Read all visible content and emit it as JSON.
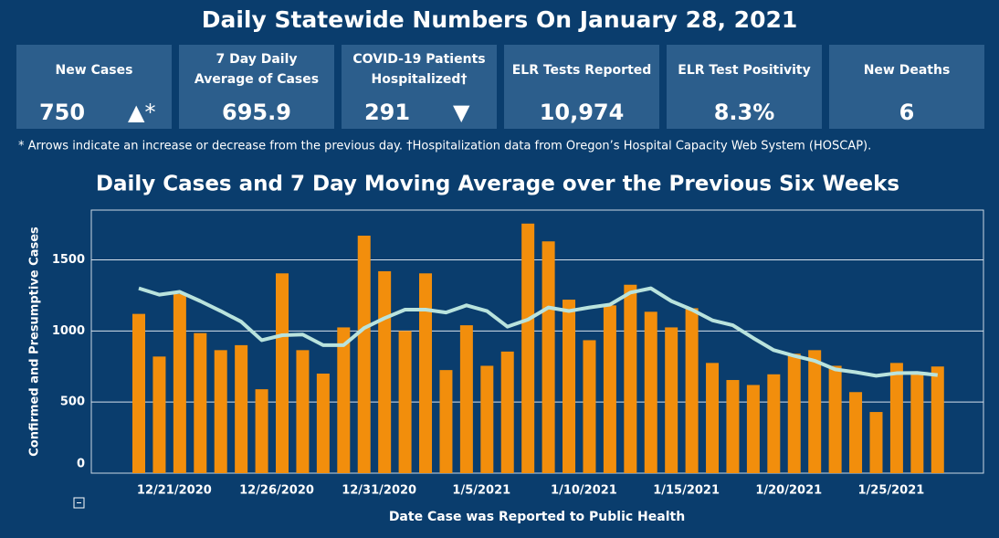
{
  "header": {
    "title": "Daily Statewide Numbers On January 28, 2021"
  },
  "cards": [
    {
      "label": "New Cases",
      "value": "750",
      "arrow": "▲*"
    },
    {
      "label": "7 Day Daily Average of Cases",
      "value": "695.9"
    },
    {
      "label": "COVID-19 Patients Hospitalized†",
      "value": "291",
      "arrow": "▼"
    },
    {
      "label": "ELR Tests Reported",
      "value": "10,974"
    },
    {
      "label": "ELR Test Positivity",
      "value": "8.3%"
    },
    {
      "label": "New Deaths",
      "value": "6"
    }
  ],
  "footnote": "* Arrows indicate an increase or decrease from the previous day. †Hospitalization data from Oregon’s Hospital Capacity Web System (HOSCAP).",
  "chart_data": {
    "type": "bar",
    "title": "Daily Cases and 7 Day Moving Average over the Previous Six Weeks",
    "x_label": "Date Case was Reported to Public Health",
    "y_label": "Confirmed and Presumptive Cases",
    "categories": [
      "12/19/2020",
      "12/20/2020",
      "12/21/2020",
      "12/22/2020",
      "12/23/2020",
      "12/24/2020",
      "12/25/2020",
      "12/26/2020",
      "12/27/2020",
      "12/28/2020",
      "12/29/2020",
      "12/30/2020",
      "12/31/2020",
      "1/1/2021",
      "1/2/2021",
      "1/3/2021",
      "1/4/2021",
      "1/5/2021",
      "1/6/2021",
      "1/7/2021",
      "1/8/2021",
      "1/9/2021",
      "1/10/2021",
      "1/11/2021",
      "1/12/2021",
      "1/13/2021",
      "1/14/2021",
      "1/15/2021",
      "1/16/2021",
      "1/17/2021",
      "1/18/2021",
      "1/19/2021",
      "1/20/2021",
      "1/21/2021",
      "1/22/2021",
      "1/23/2021",
      "1/24/2021",
      "1/25/2021",
      "1/26/2021",
      "1/27/2021"
    ],
    "series": [
      {
        "type": "bar",
        "color": "#f28e0c",
        "values": [
          1120,
          820,
          1260,
          985,
          865,
          900,
          590,
          1405,
          865,
          700,
          1025,
          1670,
          1420,
          1000,
          1405,
          725,
          1040,
          755,
          855,
          1755,
          1630,
          1220,
          935,
          1180,
          1325,
          1135,
          1025,
          1160,
          775,
          655,
          620,
          695,
          840,
          865,
          755,
          570,
          430,
          775,
          700,
          750
        ]
      },
      {
        "type": "line",
        "color": "#b9e3dd",
        "values": [
          1300,
          1255,
          1275,
          1210,
          1140,
          1065,
          935,
          970,
          975,
          900,
          900,
          1020,
          1090,
          1150,
          1150,
          1130,
          1180,
          1140,
          1030,
          1080,
          1165,
          1140,
          1165,
          1185,
          1270,
          1300,
          1210,
          1150,
          1075,
          1040,
          950,
          865,
          825,
          790,
          730,
          710,
          685,
          703,
          705,
          690
        ]
      }
    ],
    "xticks": [
      "12/21/2020",
      "12/26/2020",
      "12/31/2020",
      "1/5/2021",
      "1/10/2021",
      "1/15/2021",
      "1/20/2021",
      "1/25/2021"
    ],
    "ylim": [
      0,
      1850
    ],
    "yticks": [
      0,
      500,
      1000,
      1500
    ],
    "grid": true
  }
}
